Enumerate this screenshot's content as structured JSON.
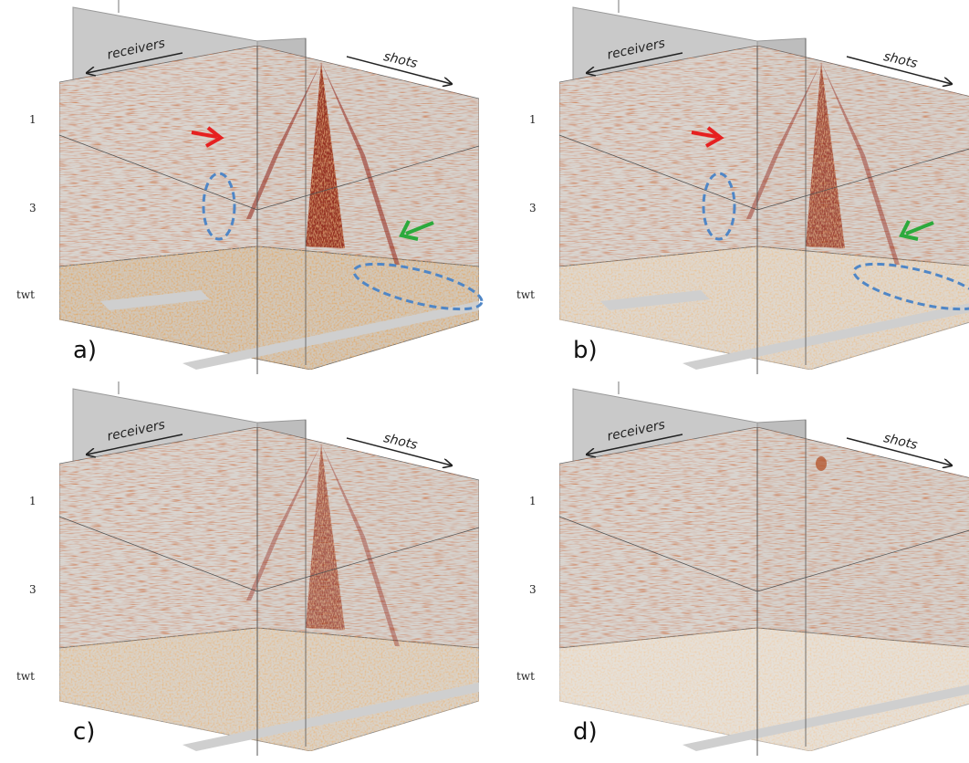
{
  "panels": [
    {
      "label": "a)",
      "receivers": "receivers",
      "shots": "shots",
      "ticks": [
        "1",
        "3",
        "twt"
      ]
    },
    {
      "label": "b)",
      "receivers": "receivers",
      "shots": "shots",
      "ticks": [
        "1",
        "3",
        "twt"
      ]
    },
    {
      "label": "c)",
      "receivers": "receivers",
      "shots": "shots",
      "ticks": [
        "1",
        "3",
        "twt"
      ]
    },
    {
      "label": "d)",
      "receivers": "receivers",
      "shots": "shots",
      "ticks": [
        "1",
        "3",
        "twt"
      ]
    }
  ]
}
